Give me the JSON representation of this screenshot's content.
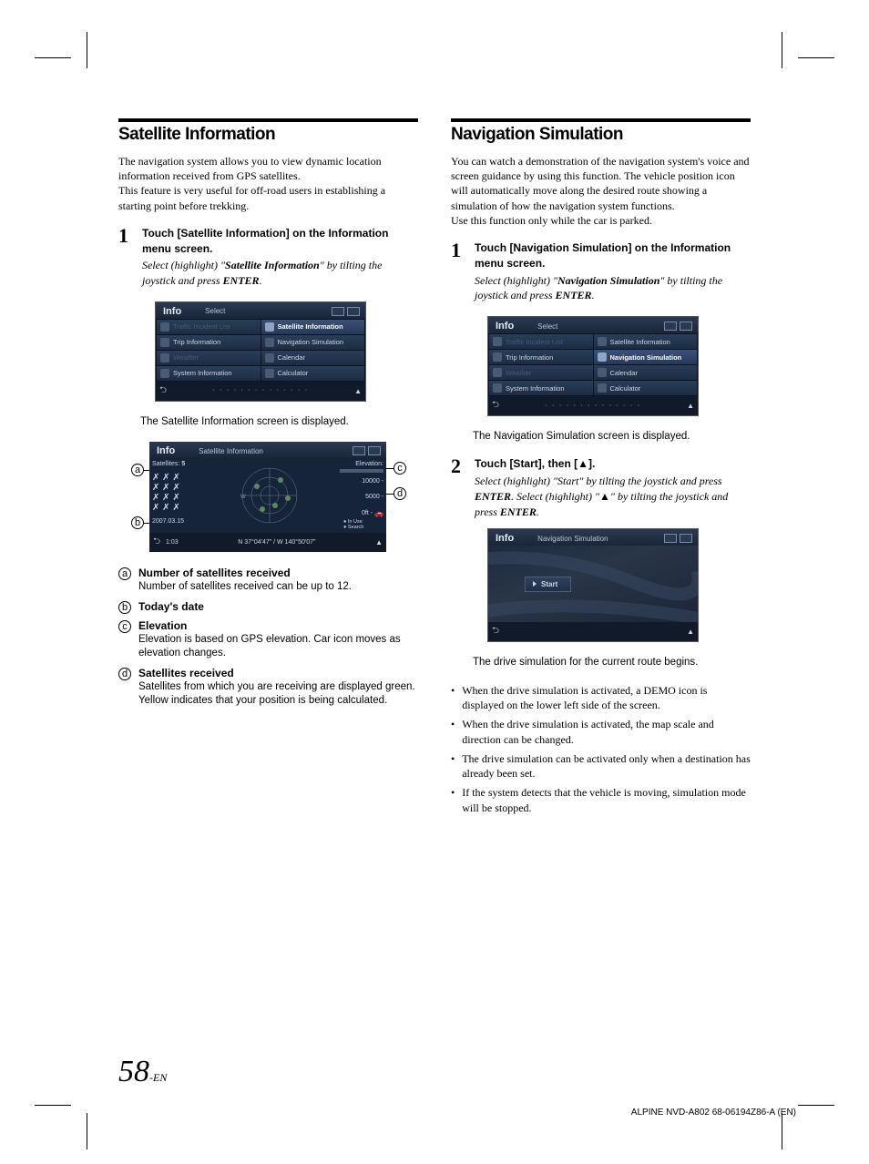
{
  "crop_marks": true,
  "left": {
    "section_title": "Satellite Information",
    "intro": "The navigation system allows you to view dynamic location information received from GPS satellites.\nThis feature is very useful for off-road users in establishing a starting point before trekking.",
    "step1_head_pre": "Touch ",
    "step1_btn": "[Satellite Information]",
    "step1_head_post": " on the Information menu screen.",
    "step1_sel_pre": "Select (highlight) \"",
    "step1_sel_name": "Satellite Information",
    "step1_sel_post": "\" by tilting the joystick and press ",
    "enter": "ENTER",
    "step1_sel_end": ".",
    "info_screen": {
      "title": "Info",
      "select": "Select",
      "items": [
        {
          "label": "Traffic Incident List",
          "dim": true
        },
        {
          "label": "Satellite Information",
          "highlight": true
        },
        {
          "label": "Trip Information"
        },
        {
          "label": "Navigation Simulation"
        },
        {
          "label": "Weather",
          "dim": true
        },
        {
          "label": "Calendar"
        },
        {
          "label": "System Information"
        },
        {
          "label": "Calculator"
        }
      ]
    },
    "caption1": "The Satellite Information screen is displayed.",
    "sat_screen": {
      "title": "Info",
      "subtitle": "Satellite Information",
      "satellites_label": "Satellites:",
      "satellites_count": "5",
      "date": "2007.03.15",
      "time": "1:03",
      "coords": "N 37°04'47\" / W 140°50'07\"",
      "elevation_label": "Elevation:",
      "elev_10000": "10000 -",
      "elev_5000": "5000 -",
      "elev_0": "0ft -",
      "legend_inuse": "In Use",
      "legend_search": "Search"
    },
    "legend": [
      {
        "letter": "a",
        "title": "Number of satellites received",
        "desc": "Number of satellites received can be up to 12."
      },
      {
        "letter": "b",
        "title": "Today's date",
        "desc": ""
      },
      {
        "letter": "c",
        "title": "Elevation",
        "desc": "Elevation is based on GPS elevation. Car icon moves as elevation changes."
      },
      {
        "letter": "d",
        "title": "Satellites received",
        "desc": "Satellites from which you are receiving are displayed green. Yellow indicates that your position is being calculated."
      }
    ]
  },
  "right": {
    "section_title": "Navigation Simulation",
    "intro": "You can watch a demonstration of the navigation system's voice and screen guidance by using this function. The vehicle position icon will automatically move along the desired route showing a simulation of how the navigation system functions.\nUse this function only while the car is parked.",
    "step1_head_pre": "Touch ",
    "step1_btn": "[Navigation Simulation]",
    "step1_head_post": " on the Information menu screen.",
    "step1_sel_pre": "Select (highlight) \"",
    "step1_sel_name": "Navigation Simulation",
    "step1_sel_post": "\" by tilting the joystick and press ",
    "step1_sel_end": ".",
    "info_screen": {
      "title": "Info",
      "select": "Select",
      "items": [
        {
          "label": "Traffic Incident List",
          "dim": true
        },
        {
          "label": "Satellite Information"
        },
        {
          "label": "Trip Information"
        },
        {
          "label": "Navigation Simulation",
          "highlight": true
        },
        {
          "label": "Weather",
          "dim": true
        },
        {
          "label": "Calendar"
        },
        {
          "label": "System Information"
        },
        {
          "label": "Calculator"
        }
      ]
    },
    "caption1": "The Navigation Simulation screen is displayed.",
    "step2_head_pre": "Touch ",
    "step2_btn": "[Start],",
    "step2_head_mid": " then ",
    "step2_btn2": "[▲].",
    "step2_sel_pre": "Select (highlight) \"",
    "step2_sel_name": "Start",
    "step2_sel_mid": "\" by tilting the joystick and press ",
    "step2_sel_mid2": ". Select (highlight) \"",
    "step2_sel_tri": "▲",
    "step2_sel_post": "\" by tilting the joystick and press ",
    "step2_sel_end": ".",
    "nav_sim_screen": {
      "title": "Info",
      "subtitle": "Navigation Simulation",
      "start": "Start"
    },
    "caption2": "The drive simulation for the current route begins.",
    "bullets": [
      "When the drive simulation is activated, a DEMO icon is displayed on the lower left side of the screen.",
      "When the drive simulation is activated, the map scale and direction can be changed.",
      "The drive simulation can be activated only when a destination has already been set.",
      "If the system detects that the vehicle is moving, simulation mode will be stopped."
    ]
  },
  "page_number": "58",
  "page_suffix": "-EN",
  "doc_id": "ALPINE NVD-A802 68-06194Z86-A (EN)"
}
